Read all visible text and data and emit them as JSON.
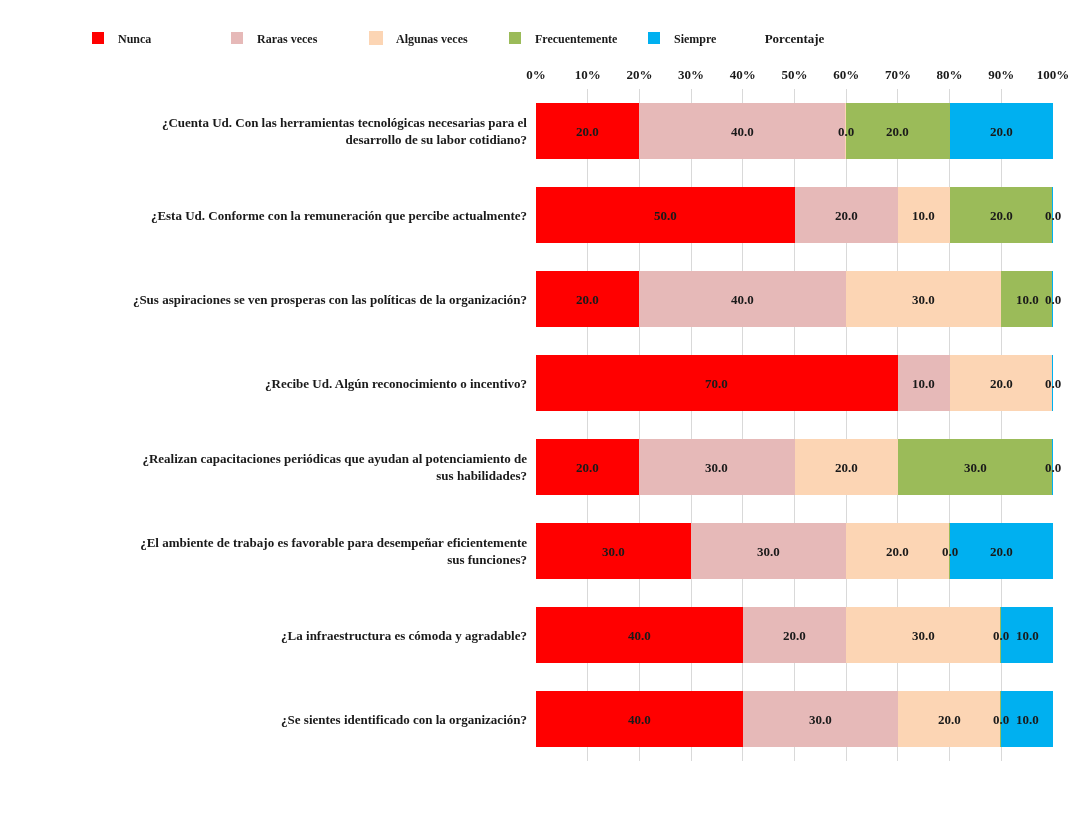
{
  "chart_data": {
    "type": "bar",
    "orientation": "horizontal",
    "stacked": true,
    "xlabel": "Porcentaje",
    "categories": [
      "¿Cuenta Ud. Con las herramientas tecnológicas necesarias para el desarrollo de su labor cotidiano?",
      "¿Esta Ud. Conforme con la remuneración que percibe actualmente?",
      "¿Sus aspiraciones se ven prosperas con las políticas de la organización?",
      "¿Recibe Ud. Algún reconocimiento o incentivo?",
      "¿Realizan capacitaciones periódicas que ayudan al potenciamiento de sus habilidades?",
      "¿El ambiente de trabajo es favorable para desempeñar eficientemente sus funciones?",
      "¿La infraestructura es cómoda y agradable?",
      "¿Se sientes identificado con la organización?"
    ],
    "series": [
      {
        "name": "Nunca",
        "color": "#ff0000",
        "values": [
          20,
          50,
          20,
          70,
          20,
          30,
          40,
          40
        ],
        "value_labels": [
          "20.0",
          "50.0",
          "20.0",
          "70.0",
          "20.0",
          "30.0",
          "40.0",
          "40.0"
        ]
      },
      {
        "name": "Raras veces",
        "color": "#e6b9b8",
        "values": [
          40,
          20,
          40,
          10,
          30,
          30,
          20,
          30
        ],
        "value_labels": [
          "40.0",
          "20.0",
          "40.0",
          "10.0",
          "30.0",
          "30.0",
          "20.0",
          "30.0"
        ]
      },
      {
        "name": "Algunas veces",
        "color": "#fcd5b4",
        "values": [
          0,
          10,
          30,
          20,
          20,
          20,
          30,
          20
        ],
        "value_labels": [
          "0.0",
          "10.0",
          "30.0",
          "20.0",
          "20.0",
          "20.0",
          "30.0",
          "20.0"
        ]
      },
      {
        "name": "Frecuentemente",
        "color": "#9bbb59",
        "values": [
          20,
          20,
          10,
          0,
          30,
          0,
          0,
          0
        ],
        "value_labels": [
          "20.0",
          "20.0",
          "10.0",
          null,
          "30.0",
          "0.0",
          "0.0",
          "0.0"
        ]
      },
      {
        "name": "Siempre",
        "color": "#00b0f0",
        "values": [
          20,
          0,
          0,
          0,
          0,
          20,
          10,
          10
        ],
        "value_labels": [
          "20.0",
          "0.0",
          "0.0",
          "0.0",
          "0.0",
          "20.0",
          "10.0",
          "10.0"
        ]
      }
    ],
    "xlim": [
      0,
      100
    ],
    "xticks": [
      {
        "value": 0,
        "label": "0%"
      },
      {
        "value": 10,
        "label": "10%"
      },
      {
        "value": 20,
        "label": "20%"
      },
      {
        "value": 30,
        "label": "30%"
      },
      {
        "value": 40,
        "label": "40%"
      },
      {
        "value": 50,
        "label": "50%"
      },
      {
        "value": 60,
        "label": "60%"
      },
      {
        "value": 70,
        "label": "70%"
      },
      {
        "value": 80,
        "label": "80%"
      },
      {
        "value": 90,
        "label": "90%"
      },
      {
        "value": 100,
        "label": "100%"
      }
    ],
    "grid": "x",
    "legend": "top"
  }
}
